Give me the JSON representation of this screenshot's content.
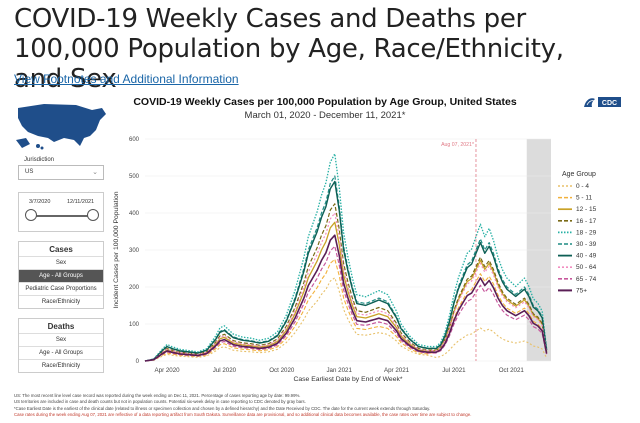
{
  "page": {
    "title": "COVID-19 Weekly Cases and Deaths per 100,000 Population by Age, Race/Ethnicity, and Sex",
    "footnote_link": "View Footnotes and Additional Information"
  },
  "logo": {
    "text": "CDC"
  },
  "sidebar": {
    "jurisdiction_label": "Jurisdiction",
    "jurisdiction_value": "US",
    "date_start": "3/7/2020",
    "date_end": "12/11/2021",
    "slider_start_fraction": 0,
    "slider_end_fraction": 1,
    "cases": {
      "header": "Cases",
      "items": [
        "Sex",
        "Age - All Groups",
        "Pediatric Case Proportions",
        "Race/Ethnicity"
      ],
      "active_index": 1
    },
    "deaths": {
      "header": "Deaths",
      "items": [
        "Sex",
        "Age - All Groups",
        "Race/Ethnicity"
      ]
    }
  },
  "footer": {
    "line1": "US: The most recent line level case record was reported during the week ending on Dec 11, 2021. Percentage of cases reporting age by date: 99.99%.",
    "line2": "US territories are included in case and death counts but not in population counts. Potential six-week delay in case reporting to CDC denoted by gray bars.",
    "line3": "*Case Earliest Date is the earliest of the clinical date (related to illness or specimen collection and chosen by a defined hierarchy) and the Date Received by CDC. The date for the current week extends through Saturday.",
    "line4": "Case rates during the week ending Aug 07, 2021 are reflective of a data reporting artifact from South Dakota. Surveillance data are provisional, and so additional clinical data becomes available, the case rates over time are subject to change."
  },
  "chart_data": {
    "type": "line",
    "title": "COVID-19 Weekly Cases per 100,000 Population by Age Group, United States",
    "subtitle": "March 01, 2020 - December 11, 2021*",
    "xlabel": "Case Earliest Date by End of Week*",
    "ylabel": "Incident Cases per 100,000 Population",
    "ylim": [
      0,
      600
    ],
    "yticks": [
      0,
      100,
      200,
      300,
      400,
      500,
      600
    ],
    "x_week_range": [
      0,
      92
    ],
    "xticks": [
      {
        "label": "Apr 2020",
        "week": 5
      },
      {
        "label": "Jul 2020",
        "week": 18
      },
      {
        "label": "Oct 2020",
        "week": 31
      },
      {
        "label": "Jan 2021",
        "week": 44
      },
      {
        "label": "Apr 2021",
        "week": 57
      },
      {
        "label": "Jul 2021",
        "week": 70
      },
      {
        "label": "Oct 2021",
        "week": 83
      }
    ],
    "annotation": {
      "label": "Aug 07, 2021*",
      "week": 75
    },
    "shaded_weeks": [
      86.5,
      92
    ],
    "legend_title": "Age Group",
    "legend_position": "right",
    "series": [
      {
        "name": "0 - 4",
        "color": "#e8c16a",
        "dash": "2,2",
        "width": 1.1,
        "scale": 0.45,
        "fall": 0.6
      },
      {
        "name": "5 - 11",
        "color": "#f2b13c",
        "dash": "4,2",
        "width": 1.1,
        "scale": 0.55,
        "fall": 1.3
      },
      {
        "name": "12 - 15",
        "color": "#c9a227",
        "dash": "",
        "width": 1.3,
        "scale": 0.75,
        "fall": 1.1
      },
      {
        "name": "16 - 17",
        "color": "#7a6a16",
        "dash": "4,2",
        "width": 1.2,
        "scale": 0.85,
        "fall": 1.0
      },
      {
        "name": "18 - 29",
        "color": "#26b0a4",
        "dash": "1.5,1.5",
        "width": 1.3,
        "scale": 1.12,
        "fall": 1.0
      },
      {
        "name": "30 - 39",
        "color": "#1e8c84",
        "dash": "4,2",
        "width": 1.2,
        "scale": 1.0,
        "fall": 1.0
      },
      {
        "name": "40 - 49",
        "color": "#0d5f55",
        "dash": "",
        "width": 1.4,
        "scale": 0.97,
        "fall": 1.0
      },
      {
        "name": "50 - 64",
        "color": "#f28dc0",
        "dash": "2,2",
        "width": 1.2,
        "scale": 0.8,
        "fall": 1.0
      },
      {
        "name": "65 - 74",
        "color": "#c7579c",
        "dash": "4,2",
        "width": 1.2,
        "scale": 0.62,
        "fall": 1.0
      },
      {
        "name": "75+",
        "color": "#5a1e56",
        "dash": "",
        "width": 1.6,
        "scale": 0.68,
        "fall": 1.0
      }
    ],
    "base_profile": [
      [
        0,
        0
      ],
      [
        2,
        5
      ],
      [
        4,
        30
      ],
      [
        5,
        40
      ],
      [
        6,
        35
      ],
      [
        8,
        28
      ],
      [
        10,
        25
      ],
      [
        12,
        22
      ],
      [
        14,
        30
      ],
      [
        16,
        60
      ],
      [
        17,
        80
      ],
      [
        18,
        85
      ],
      [
        19,
        75
      ],
      [
        20,
        65
      ],
      [
        22,
        58
      ],
      [
        24,
        55
      ],
      [
        26,
        50
      ],
      [
        28,
        55
      ],
      [
        30,
        70
      ],
      [
        32,
        110
      ],
      [
        34,
        170
      ],
      [
        36,
        250
      ],
      [
        37,
        300
      ],
      [
        38,
        330
      ],
      [
        39,
        360
      ],
      [
        40,
        400
      ],
      [
        41,
        430
      ],
      [
        42,
        480
      ],
      [
        43,
        500
      ],
      [
        44,
        420
      ],
      [
        45,
        310
      ],
      [
        46,
        250
      ],
      [
        47,
        200
      ],
      [
        48,
        160
      ],
      [
        50,
        155
      ],
      [
        51,
        160
      ],
      [
        52,
        165
      ],
      [
        53,
        170
      ],
      [
        54,
        165
      ],
      [
        55,
        160
      ],
      [
        56,
        140
      ],
      [
        57,
        120
      ],
      [
        58,
        90
      ],
      [
        60,
        60
      ],
      [
        62,
        40
      ],
      [
        64,
        35
      ],
      [
        66,
        35
      ],
      [
        67,
        45
      ],
      [
        68,
        70
      ],
      [
        69,
        110
      ],
      [
        70,
        160
      ],
      [
        71,
        200
      ],
      [
        72,
        230
      ],
      [
        73,
        260
      ],
      [
        74,
        270
      ],
      [
        75,
        300
      ],
      [
        76,
        330
      ],
      [
        77,
        300
      ],
      [
        78,
        320
      ],
      [
        79,
        290
      ],
      [
        80,
        250
      ],
      [
        81,
        220
      ],
      [
        82,
        200
      ],
      [
        83,
        190
      ],
      [
        84,
        180
      ],
      [
        85,
        190
      ],
      [
        86,
        200
      ],
      [
        87,
        180
      ],
      [
        88,
        150
      ],
      [
        89,
        140
      ],
      [
        90,
        120
      ],
      [
        91,
        30
      ]
    ]
  }
}
